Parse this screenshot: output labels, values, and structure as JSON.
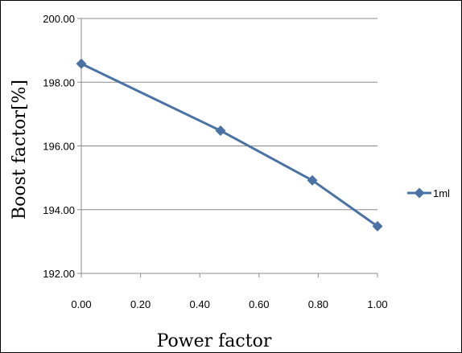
{
  "chart_data": {
    "type": "line",
    "title": "",
    "xlabel": "Power factor",
    "ylabel": "Boost factor[%]",
    "xlim": [
      0.0,
      1.0
    ],
    "ylim": [
      192.0,
      200.0
    ],
    "x_ticks": [
      "0.00",
      "0.20",
      "0.40",
      "0.60",
      "0.80",
      "1.00"
    ],
    "y_ticks": [
      "192.00",
      "194.00",
      "196.00",
      "198.00",
      "200.00"
    ],
    "grid": "horizontal",
    "legend_position": "right",
    "series": [
      {
        "name": "1ml",
        "color": "#4a72a5",
        "marker": "diamond",
        "x": [
          0.0,
          0.47,
          0.78,
          1.0
        ],
        "y": [
          198.58,
          196.48,
          194.92,
          193.48
        ]
      }
    ]
  }
}
